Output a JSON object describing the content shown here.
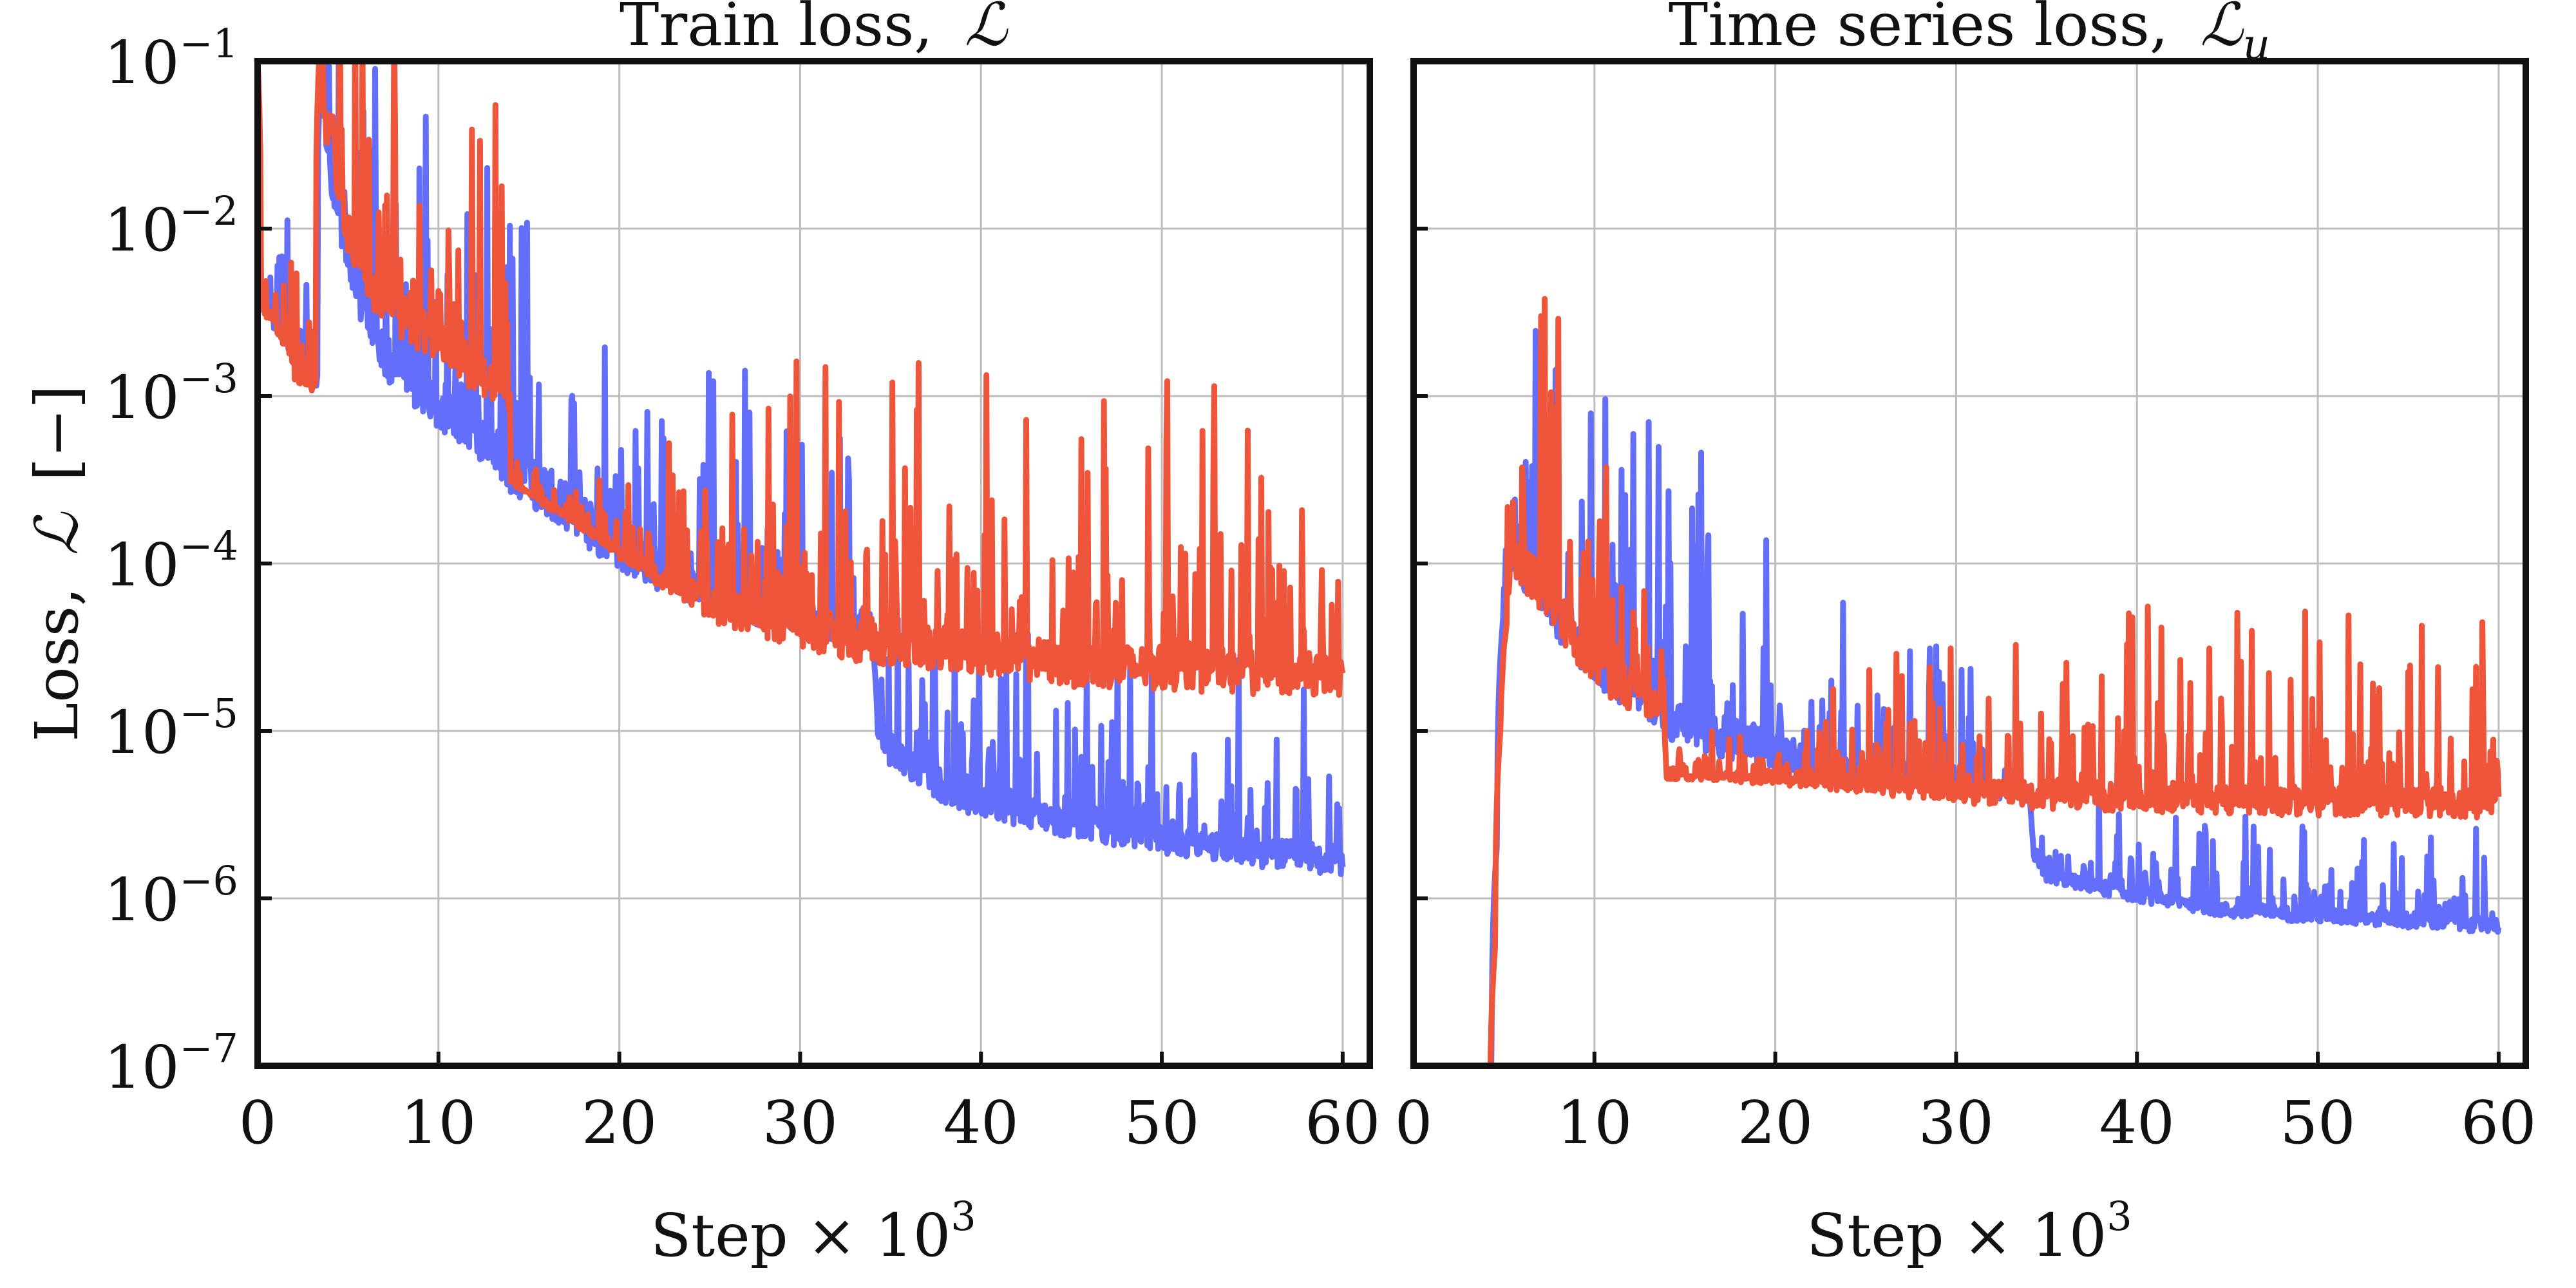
{
  "chart_data": [
    {
      "type": "line",
      "title_text": "Train loss,",
      "title_symbol": "ℒ",
      "title_sub": "",
      "xlabel_text": "Step × 10",
      "xlabel_exp": "3",
      "ylabel_text": "Loss,",
      "ylabel_symbol": "ℒ",
      "ylabel_unit": "[−]",
      "yscale": "log",
      "xlim": [
        0,
        61.5
      ],
      "ylim": [
        1e-07,
        0.1
      ],
      "x_ticks": [
        "0",
        "10",
        "20",
        "30",
        "40",
        "50",
        "60"
      ],
      "y_ticks": [
        {
          "base": "10",
          "exp": "−1"
        },
        {
          "base": "10",
          "exp": "−2"
        },
        {
          "base": "10",
          "exp": "−3"
        },
        {
          "base": "10",
          "exp": "−4"
        },
        {
          "base": "10",
          "exp": "−5"
        },
        {
          "base": "10",
          "exp": "−6"
        },
        {
          "base": "10",
          "exp": "−7"
        }
      ],
      "grid": true,
      "series": [
        {
          "name": "blue",
          "color": "#636EFA",
          "x": [
            0,
            0.2,
            0.5,
            1,
            1.5,
            2,
            2.5,
            3,
            3.3,
            3.5,
            3.6,
            3.8,
            4,
            4.5,
            5,
            6,
            7,
            8,
            10,
            12,
            14,
            16,
            18,
            20,
            22,
            25,
            28,
            30,
            33,
            34,
            34.3,
            35,
            38,
            40,
            45,
            50,
            55,
            60
          ],
          "y": [
            0.04,
            0.0035,
            0.003,
            0.0025,
            0.0022,
            0.0015,
            0.0013,
            0.0012,
            0.0011,
            0.1,
            0.1,
            0.03,
            0.02,
            0.01,
            0.005,
            0.0025,
            0.0015,
            0.0011,
            0.0007,
            0.0005,
            0.0003,
            0.00022,
            0.00015,
            0.0001,
            8e-05,
            6e-05,
            4.5e-05,
            4e-05,
            3.5e-05,
            3.4e-05,
            9.5e-06,
            6.5e-06,
            4e-06,
            3.3e-06,
            2.5e-06,
            2e-06,
            1.7e-06,
            1.5e-06
          ],
          "noise_scale": [
            0,
            0,
            0.5,
            0.4,
            0.5,
            0.6,
            0.4,
            0.4,
            0.3,
            0,
            0,
            1.0,
            1.2,
            1.3,
            1.3,
            1.3,
            1.3,
            1.2,
            1.2,
            1.2,
            1.2,
            1.4,
            1.3,
            1.2,
            1.2,
            1.0,
            1.0,
            1.0,
            0.9,
            0.6,
            0.1,
            0.8,
            0.9,
            0.8,
            0.8,
            0.8,
            0.8,
            0.8
          ]
        },
        {
          "name": "red",
          "color": "#EF553B",
          "x": [
            0,
            0.2,
            0.5,
            1,
            1.5,
            2,
            2.5,
            3,
            3.2,
            3.4,
            3.6,
            4,
            4.5,
            5,
            6,
            8,
            10,
            12,
            13.8,
            14,
            16,
            18,
            20,
            22,
            25,
            28,
            30,
            33,
            35,
            40,
            45,
            50,
            55,
            60
          ],
          "y": [
            0.1,
            0.0035,
            0.003,
            0.0025,
            0.002,
            0.0013,
            0.0012,
            0.0011,
            0.0012,
            0.1,
            0.04,
            0.03,
            0.015,
            0.008,
            0.004,
            0.0025,
            0.0018,
            0.0012,
            0.001,
            0.0003,
            0.00022,
            0.00016,
            0.00011,
            8e-05,
            5e-05,
            4e-05,
            3.5e-05,
            3e-05,
            2.8e-05,
            2.5e-05,
            2.1e-05,
            2e-05,
            1.9e-05,
            1.8e-05
          ],
          "noise_scale": [
            0,
            0,
            0.4,
            0.4,
            0.4,
            0.5,
            0.4,
            0.4,
            0.3,
            0,
            1.0,
            1.2,
            1.2,
            1.2,
            1.2,
            1.2,
            1.2,
            1.2,
            1.2,
            0.1,
            0.25,
            0.25,
            0.3,
            0.5,
            0.9,
            1.1,
            1.2,
            1.2,
            1.2,
            1.2,
            1.2,
            1.2,
            1.2,
            1.2
          ]
        }
      ]
    },
    {
      "type": "line",
      "title_text": "Time series loss,",
      "title_symbol": "ℒ",
      "title_sub": "u",
      "xlabel_text": "Step × 10",
      "xlabel_exp": "3",
      "yscale": "log",
      "xlim": [
        0,
        61.5
      ],
      "ylim": [
        1e-07,
        0.1
      ],
      "x_ticks": [
        "0",
        "10",
        "20",
        "30",
        "40",
        "50",
        "60"
      ],
      "grid": true,
      "series": [
        {
          "name": "blue",
          "color": "#636EFA",
          "x": [
            4.0,
            4.3,
            4.6,
            4.9,
            5.3,
            6,
            7,
            8,
            10,
            12,
            13.5,
            14,
            16,
            18,
            20,
            22,
            25,
            28,
            30,
            33,
            34,
            34.3,
            35,
            38,
            40,
            45,
            50,
            55,
            60
          ],
          "y": [
            1e-08,
            1e-07,
            2e-06,
            4e-05,
            0.0001,
            8e-05,
            5e-05,
            4e-05,
            2e-05,
            1.5e-05,
            1.2e-05,
            1e-05,
            8.5e-06,
            7.5e-06,
            6.5e-06,
            6e-06,
            5.5e-06,
            5e-06,
            4.5e-06,
            4e-06,
            4e-06,
            1.7e-06,
            1.3e-06,
            1.1e-06,
            1e-06,
            8e-07,
            7.5e-07,
            7e-07,
            6.5e-07
          ],
          "noise_scale": [
            0,
            0,
            0,
            0,
            0.8,
            1.3,
            1.3,
            1.3,
            1.2,
            1.2,
            1.2,
            1.0,
            1.2,
            1.2,
            1.0,
            0.8,
            0.6,
            0.6,
            0.5,
            0.5,
            0.4,
            0.1,
            0.3,
            0.4,
            0.4,
            0.4,
            0.4,
            0.4,
            0.4
          ]
        },
        {
          "name": "red",
          "color": "#EF553B",
          "x": [
            4.2,
            4.5,
            4.8,
            5.2,
            5.5,
            6,
            7,
            8,
            10,
            12,
            13.8,
            14,
            16,
            18,
            20,
            22,
            25,
            28,
            30,
            33,
            35,
            40,
            45,
            50,
            55,
            60
          ],
          "y": [
            2e-08,
            5e-07,
            1e-05,
            5e-05,
            0.0001,
            8e-05,
            6e-05,
            4e-05,
            2e-05,
            1.5e-05,
            1.2e-05,
            5.2e-06,
            5.2e-06,
            5.1e-06,
            5e-06,
            4.8e-06,
            4.5e-06,
            4.2e-06,
            4e-06,
            3.8e-06,
            3.7e-06,
            3.6e-06,
            3.5e-06,
            3.4e-06,
            3.4e-06,
            3.3e-06
          ],
          "noise_scale": [
            0,
            0,
            0,
            0.5,
            1.0,
            1.3,
            1.3,
            1.3,
            1.3,
            1.2,
            1.2,
            0.1,
            0.2,
            0.3,
            0.4,
            0.5,
            0.5,
            0.6,
            0.6,
            0.7,
            0.8,
            0.8,
            0.8,
            0.8,
            0.8,
            0.8
          ]
        }
      ]
    }
  ]
}
